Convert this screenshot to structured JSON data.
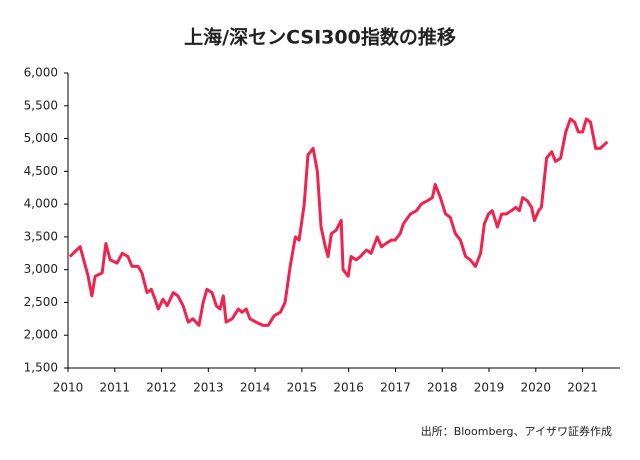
{
  "chart_data": {
    "type": "line",
    "title": "上海/深センCSI300指数の推移",
    "source": "出所：Bloomberg、アイザワ証券作成",
    "x": [
      2010.04,
      2010.26,
      2010.43,
      2010.51,
      2010.58,
      2010.73,
      2010.81,
      2010.9,
      2011.05,
      2011.16,
      2011.28,
      2011.37,
      2011.5,
      2011.58,
      2011.69,
      2011.78,
      2011.86,
      2011.93,
      2012.03,
      2012.12,
      2012.25,
      2012.35,
      2012.46,
      2012.57,
      2012.67,
      2012.8,
      2012.89,
      2012.97,
      2013.08,
      2013.17,
      2013.25,
      2013.32,
      2013.38,
      2013.51,
      2013.64,
      2013.72,
      2013.81,
      2013.89,
      2014.02,
      2014.17,
      2014.28,
      2014.41,
      2014.54,
      2014.64,
      2014.75,
      2014.86,
      2014.94,
      2015.05,
      2015.13,
      2015.24,
      2015.33,
      2015.41,
      2015.5,
      2015.56,
      2015.63,
      2015.73,
      2015.84,
      2015.88,
      2015.99,
      2016.05,
      2016.16,
      2016.25,
      2016.38,
      2016.48,
      2016.61,
      2016.7,
      2016.8,
      2016.91,
      2016.99,
      2017.1,
      2017.17,
      2017.32,
      2017.45,
      2017.55,
      2017.68,
      2017.79,
      2017.85,
      2017.96,
      2018.07,
      2018.17,
      2018.28,
      2018.39,
      2018.5,
      2018.6,
      2018.71,
      2018.82,
      2018.9,
      2018.99,
      2019.07,
      2019.18,
      2019.27,
      2019.37,
      2019.48,
      2019.57,
      2019.65,
      2019.72,
      2019.82,
      2019.91,
      2019.97,
      2020.06,
      2020.12,
      2020.23,
      2020.34,
      2020.42,
      2020.53,
      2020.64,
      2020.74,
      2020.83,
      2020.91,
      2021.0,
      2021.08,
      2021.17,
      2021.28,
      2021.38,
      2021.53
    ],
    "series": [
      {
        "name": "CSI300",
        "color": "#f0234f",
        "values": [
          3200,
          3350,
          2900,
          2600,
          2900,
          2950,
          3400,
          3150,
          3100,
          3250,
          3200,
          3050,
          3050,
          2950,
          2650,
          2700,
          2550,
          2400,
          2550,
          2450,
          2650,
          2600,
          2450,
          2200,
          2250,
          2150,
          2500,
          2700,
          2650,
          2450,
          2400,
          2600,
          2200,
          2250,
          2400,
          2350,
          2400,
          2250,
          2200,
          2150,
          2150,
          2300,
          2350,
          2500,
          3050,
          3500,
          3450,
          4000,
          4750,
          4850,
          4500,
          3650,
          3350,
          3200,
          3550,
          3600,
          3750,
          3000,
          2900,
          3200,
          3150,
          3200,
          3300,
          3250,
          3500,
          3350,
          3400,
          3450,
          3450,
          3550,
          3700,
          3850,
          3900,
          4000,
          4050,
          4100,
          4300,
          4100,
          3850,
          3800,
          3550,
          3450,
          3200,
          3150,
          3050,
          3250,
          3700,
          3850,
          3900,
          3650,
          3850,
          3850,
          3900,
          3950,
          3900,
          4100,
          4050,
          3950,
          3750,
          3900,
          3950,
          4700,
          4800,
          4650,
          4700,
          5100,
          5300,
          5250,
          5100,
          5100,
          5300,
          5250,
          4850,
          4850,
          4950
        ]
      }
    ],
    "xlim": [
      2010,
      2021.8
    ],
    "xticks": [
      2010,
      2011,
      2012,
      2013,
      2014,
      2015,
      2016,
      2017,
      2018,
      2019,
      2020,
      2021
    ],
    "ylim": [
      1500,
      6000
    ],
    "yticks": [
      {
        "value": 1500,
        "label": "1,500"
      },
      {
        "value": 2000,
        "label": "2,000"
      },
      {
        "value": 2500,
        "label": "2,500"
      },
      {
        "value": 3000,
        "label": "3,000"
      },
      {
        "value": 3500,
        "label": "3,500"
      },
      {
        "value": 4000,
        "label": "4,000"
      },
      {
        "value": 4500,
        "label": "4,500"
      },
      {
        "value": 5000,
        "label": "5,000"
      },
      {
        "value": 5500,
        "label": "5,500"
      },
      {
        "value": 6000,
        "label": "6,000"
      }
    ],
    "grid": false
  }
}
